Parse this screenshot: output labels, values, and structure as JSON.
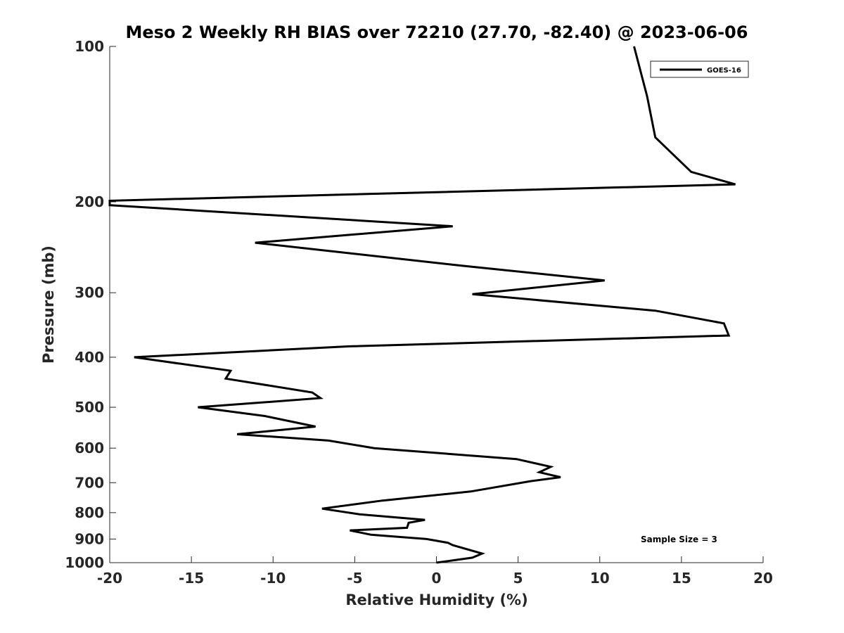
{
  "chart_data": {
    "type": "line",
    "title": "Meso 2 Weekly RH BIAS over 72210 (27.70, -82.40) @ 2023-06-06",
    "xlabel": "Relative Humidity (%)",
    "ylabel": "Pressure (mb)",
    "xlim": [
      -20,
      20
    ],
    "ylim": [
      100,
      1000
    ],
    "y_scale": "log",
    "y_reversed": true,
    "xticks": [
      "-20",
      "-15",
      "-10",
      "-5",
      "0",
      "5",
      "10",
      "15",
      "20"
    ],
    "yticks": [
      "100",
      "200",
      "300",
      "400",
      "500",
      "600",
      "700",
      "800",
      "900",
      "1000"
    ],
    "grid": false,
    "legend_position": "top-right",
    "series": [
      {
        "name": "GOES-16",
        "color": "#000000",
        "points": [
          [
            12.1,
            100
          ],
          [
            12.9,
            125
          ],
          [
            13.4,
            150
          ],
          [
            15.6,
            175
          ],
          [
            18.3,
            185
          ],
          [
            -20.0,
            199
          ],
          [
            -20.0,
            203
          ],
          [
            1.0,
            223
          ],
          [
            -11.1,
            240
          ],
          [
            1.6,
            266
          ],
          [
            10.3,
            284
          ],
          [
            2.2,
            302
          ],
          [
            13.4,
            325
          ],
          [
            17.6,
            344
          ],
          [
            17.9,
            363
          ],
          [
            -5.3,
            381
          ],
          [
            -18.5,
            400
          ],
          [
            -12.6,
            425
          ],
          [
            -12.9,
            440
          ],
          [
            -7.6,
            468
          ],
          [
            -7.1,
            480
          ],
          [
            -14.6,
            500
          ],
          [
            -10.5,
            520
          ],
          [
            -7.4,
            545
          ],
          [
            -12.2,
            564
          ],
          [
            -6.6,
            580
          ],
          [
            -3.8,
            600
          ],
          [
            4.9,
            630
          ],
          [
            7.0,
            652
          ],
          [
            6.3,
            668
          ],
          [
            7.6,
            683
          ],
          [
            5.8,
            695
          ],
          [
            2.1,
            728
          ],
          [
            -3.3,
            758
          ],
          [
            -7.0,
            786
          ],
          [
            -4.7,
            806
          ],
          [
            -0.7,
            826
          ],
          [
            -1.7,
            837
          ],
          [
            -1.8,
            856
          ],
          [
            -5.3,
            866
          ],
          [
            -4.0,
            883
          ],
          [
            -0.6,
            900
          ],
          [
            0.7,
            915
          ],
          [
            1.0,
            925
          ],
          [
            2.8,
            960
          ],
          [
            2.2,
            978
          ],
          [
            0.0,
            1000
          ]
        ]
      }
    ],
    "annotation": "Sample Size = 3"
  }
}
